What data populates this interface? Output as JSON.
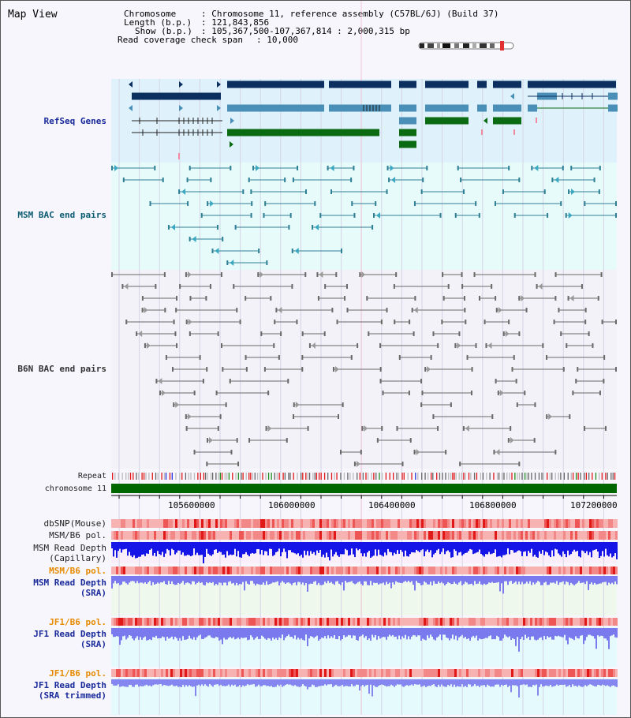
{
  "title": "Map View",
  "header": {
    "chromosome_key": "Chromosome",
    "chromosome_val": ": Chromosome 11, reference assembly (C57BL/6J) (Build 37)",
    "length_key": "Length (b.p.)",
    "length_val": ": 121,843,856",
    "show_key": "Show (b.p.)",
    "show_val": ": 105,367,500-107,367,814 : 2,000,315 bp",
    "coverage_key": "Read coverage check span",
    "coverage_val": ": 10,000"
  },
  "tracks": {
    "refseq": "RefSeq Genes",
    "msm_bac": "MSM BAC end pairs",
    "b6n_bac": "B6N BAC end pairs",
    "repeat": "Repeat",
    "chromosome": "chromosome 11",
    "dbsnp": "dbSNP(Mouse)",
    "msm_b6_pol_1": "MSM/B6 pol.",
    "msm_read_depth_cap": "MSM Read Depth\n(Capillary)",
    "msm_b6_pol_2": "MSM/B6 pol.",
    "msm_read_depth_sra": "MSM Read Depth\n(SRA)",
    "jf1_b6_pol_1": "JF1/B6 pol.",
    "jf1_read_depth_sra": "JF1 Read Depth\n(SRA)",
    "jf1_b6_pol_2": "JF1/B6 pol.",
    "jf1_read_depth_trim": "JF1 Read Depth\n(SRA trimmed)"
  },
  "ruler": {
    "ticks": [
      "105600000",
      "106000000",
      "106400000",
      "106800000",
      "107200000"
    ]
  },
  "colors": {
    "refseq_bg": "#dff2fb",
    "gene_dark": "#0b2f5e",
    "gene_mid": "#4a8fb8",
    "gene_green": "#0a6b12",
    "msm_line": "#2f7f95",
    "b6n_line": "#6a6a6a",
    "chromosome_bar": "#006600",
    "snp_red": "#e02020",
    "depth_blue": "#1515e8",
    "depth_light": "#7a7aee"
  }
}
